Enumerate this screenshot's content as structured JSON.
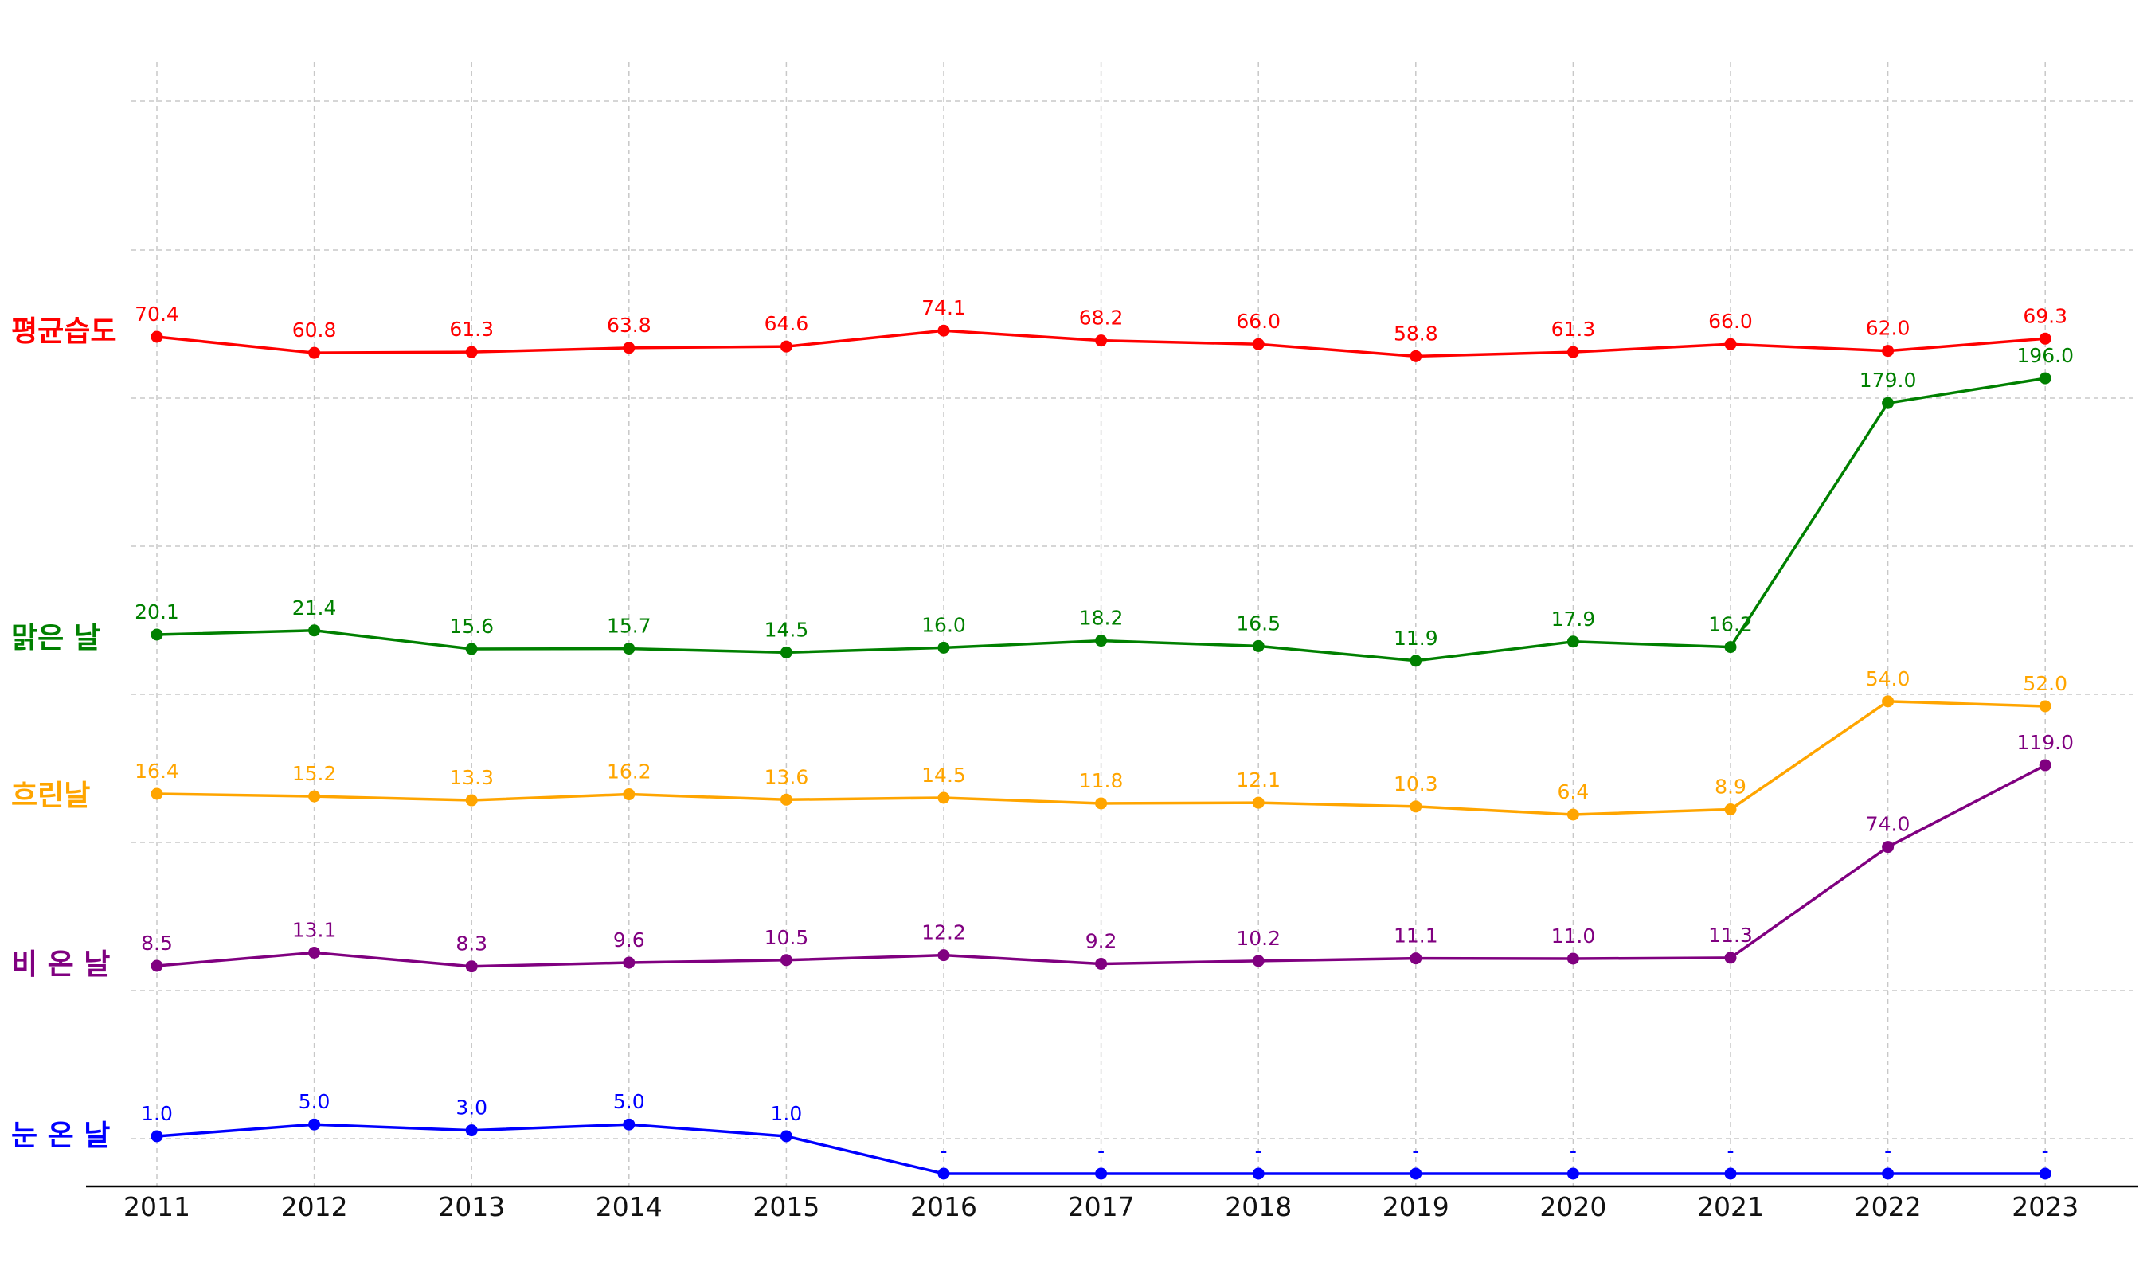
{
  "chart_data": {
    "type": "line",
    "title": "",
    "xlabel": "",
    "ylabel": "",
    "categories": [
      "2011",
      "2012",
      "2013",
      "2014",
      "2015",
      "2016",
      "2017",
      "2018",
      "2019",
      "2020",
      "2021",
      "2022",
      "2023"
    ],
    "grid": true,
    "y_tick_labels_visible": false,
    "series": [
      {
        "name": "평균습도",
        "color": "#ff0000",
        "values": [
          70.4,
          60.8,
          61.3,
          63.8,
          64.6,
          74.1,
          68.2,
          66.0,
          58.8,
          61.3,
          66.0,
          62.0,
          69.3
        ],
        "labels": [
          "70.4",
          "60.8",
          "61.3",
          "63.8",
          "64.6",
          "74.1",
          "68.2",
          "66.0",
          "58.8",
          "61.3",
          "66.0",
          "62.0",
          "69.3"
        ]
      },
      {
        "name": "맑은 날",
        "color": "#008000",
        "values": [
          20.1,
          21.4,
          15.6,
          15.7,
          14.5,
          16.0,
          18.2,
          16.5,
          11.9,
          17.9,
          16.2,
          179.0,
          196.0
        ],
        "labels": [
          "20.1",
          "21.4",
          "15.6",
          "15.7",
          "14.5",
          "16.0",
          "18.2",
          "16.5",
          "11.9",
          "17.9",
          "16.2",
          "179.0",
          "196.0"
        ]
      },
      {
        "name": "흐린날",
        "color": "#ffa500",
        "values": [
          16.4,
          15.2,
          13.3,
          16.2,
          13.6,
          14.5,
          11.8,
          12.1,
          10.3,
          6.4,
          8.9,
          54.0,
          52.0
        ],
        "labels": [
          "16.4",
          "15.2",
          "13.3",
          "16.2",
          "13.6",
          "14.5",
          "11.8",
          "12.1",
          "10.3",
          "6.4",
          "8.9",
          "54.0",
          "52.0"
        ]
      },
      {
        "name": "비 온 날",
        "color": "#800080",
        "values": [
          8.5,
          13.1,
          8.3,
          9.6,
          10.5,
          12.2,
          9.2,
          10.2,
          11.1,
          11.0,
          11.3,
          74.0,
          119.0
        ],
        "labels": [
          "8.5",
          "13.1",
          "8.3",
          "9.6",
          "10.5",
          "12.2",
          "9.2",
          "10.2",
          "11.1",
          "11.0",
          "11.3",
          "74.0",
          "119.0"
        ]
      },
      {
        "name": "눈 온 날",
        "color": "#0000ff",
        "values": [
          1.0,
          5.0,
          3.0,
          5.0,
          1.0,
          null,
          null,
          null,
          null,
          null,
          null,
          null,
          null
        ],
        "labels": [
          "1.0",
          "5.0",
          "3.0",
          "5.0",
          "1.0",
          "-",
          "-",
          "-",
          "-",
          "-",
          "-",
          "-",
          "-"
        ]
      }
    ]
  }
}
